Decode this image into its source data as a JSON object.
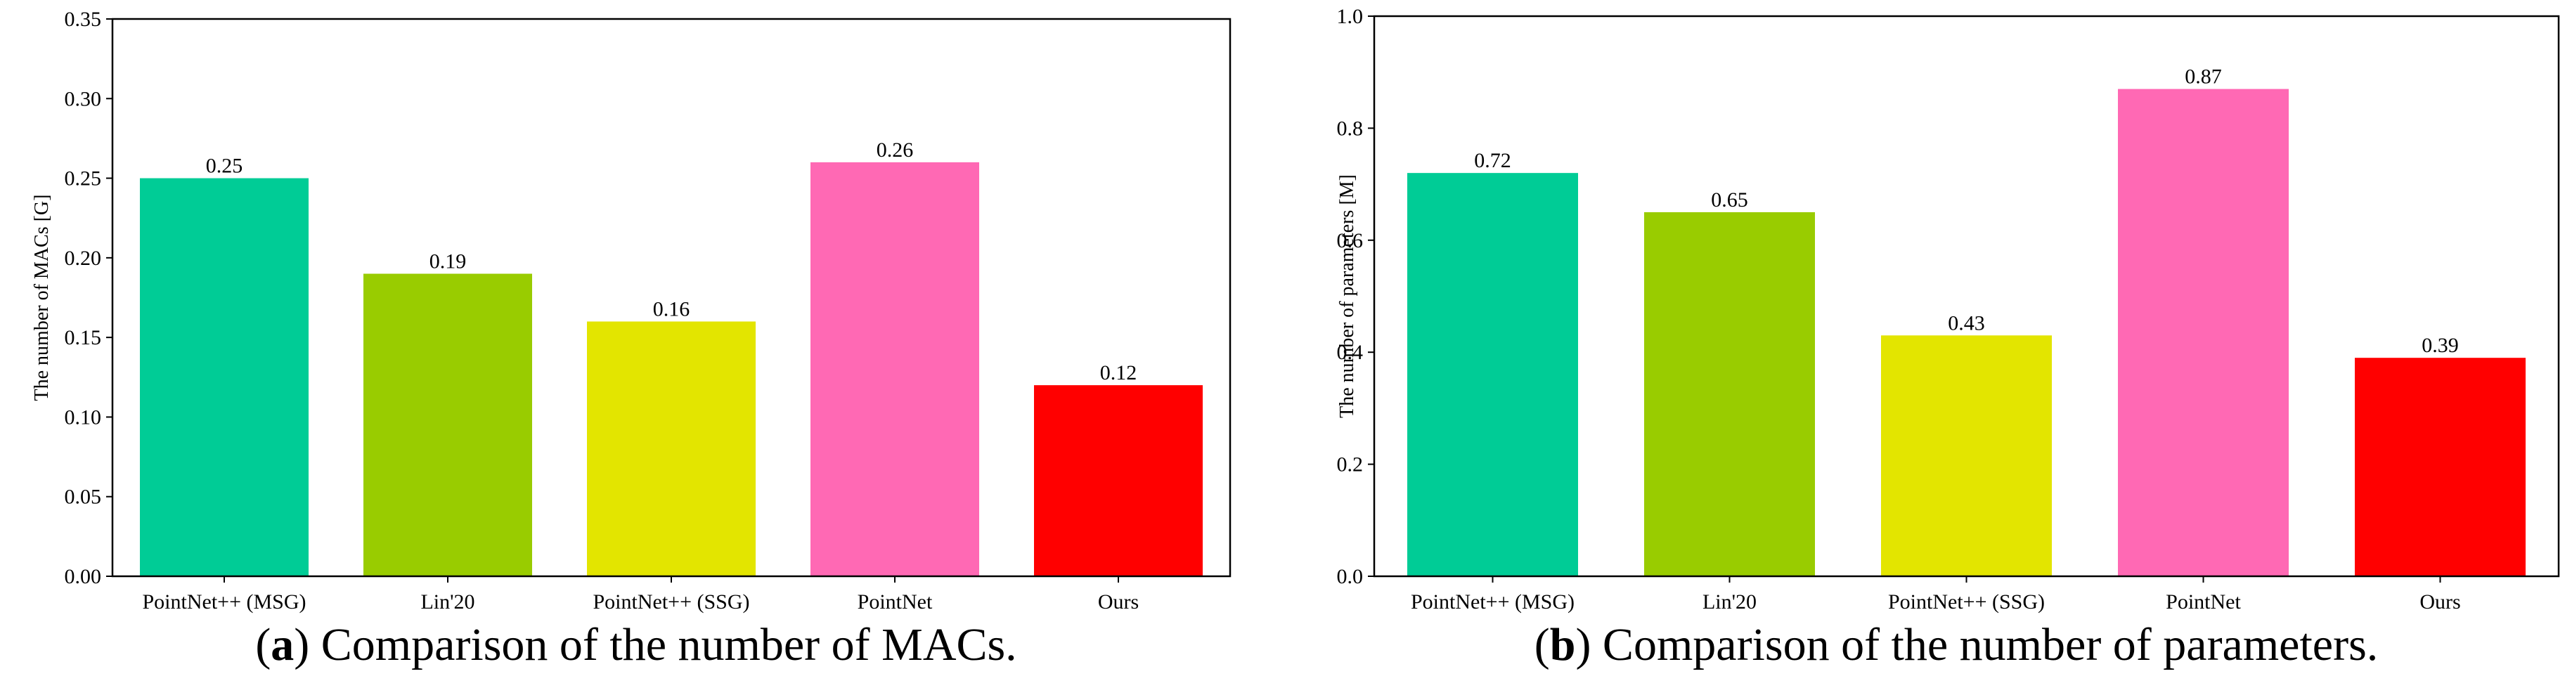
{
  "captions": [
    {
      "letter": "a",
      "text": " Comparison of the number of MACs."
    },
    {
      "letter": "b",
      "text": " Comparison of the number of parameters."
    }
  ],
  "chart_data": [
    {
      "type": "bar",
      "title": "",
      "xlabel": "",
      "ylabel": "The number of MACs [G]",
      "categories": [
        "PointNet++ (MSG)",
        "Lin'20",
        "PointNet++ (SSG)",
        "PointNet",
        "Ours"
      ],
      "values": [
        0.25,
        0.19,
        0.16,
        0.26,
        0.12
      ],
      "value_labels": [
        "0.25",
        "0.19",
        "0.16",
        "0.26",
        "0.12"
      ],
      "colors": [
        "#00CC96",
        "#99CC00",
        "#E3E500",
        "#FF69B4",
        "#FF0000"
      ],
      "ylim": [
        0,
        0.35
      ],
      "yticks": [
        0,
        0.05,
        0.1,
        0.15,
        0.2,
        0.25,
        0.3,
        0.35
      ],
      "ytick_labels": [
        "0.00",
        "0.05",
        "0.10",
        "0.15",
        "0.20",
        "0.25",
        "0.30",
        "0.35"
      ],
      "grid": false,
      "legend": "none"
    },
    {
      "type": "bar",
      "title": "",
      "xlabel": "",
      "ylabel": "The number of parameters [M]",
      "categories": [
        "PointNet++ (MSG)",
        "Lin'20",
        "PointNet++ (SSG)",
        "PointNet",
        "Ours"
      ],
      "values": [
        0.72,
        0.65,
        0.43,
        0.87,
        0.39
      ],
      "value_labels": [
        "0.72",
        "0.65",
        "0.43",
        "0.87",
        "0.39"
      ],
      "colors": [
        "#00CC96",
        "#99CC00",
        "#E3E500",
        "#FF69B4",
        "#FF0000"
      ],
      "ylim": [
        0,
        1.0
      ],
      "yticks": [
        0,
        0.2,
        0.4,
        0.6,
        0.8,
        1.0
      ],
      "ytick_labels": [
        "0.0",
        "0.2",
        "0.4",
        "0.6",
        "0.8",
        "1.0"
      ],
      "grid": false,
      "legend": "none"
    }
  ]
}
